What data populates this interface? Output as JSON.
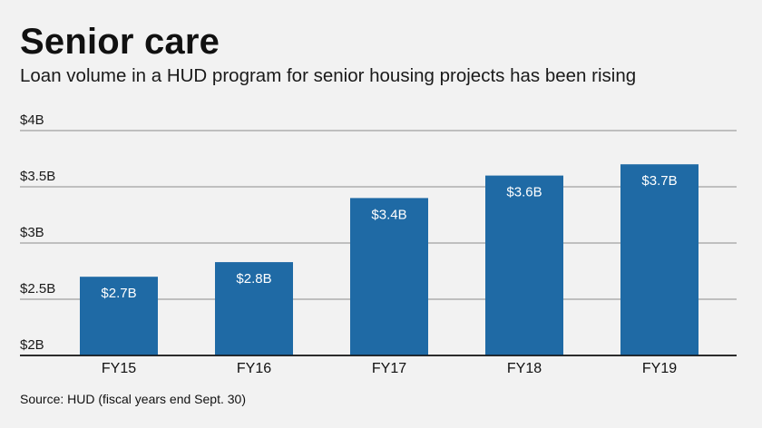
{
  "header": {
    "title": "Senior care",
    "subtitle": "Loan volume in a HUD program for senior housing projects has been rising"
  },
  "footer": {
    "source": "Source: HUD (fiscal years end Sept. 30)"
  },
  "colors": {
    "bar": "#1f6aa5",
    "gridline": "#8c8c8c",
    "background": "#f2f2f2"
  },
  "chart_data": {
    "type": "bar",
    "title": "Senior care",
    "subtitle": "Loan volume in a HUD program for senior housing projects has been rising",
    "categories": [
      "FY15",
      "FY16",
      "FY17",
      "FY18",
      "FY19"
    ],
    "values": [
      2.7,
      2.83,
      3.4,
      3.6,
      3.7
    ],
    "data_labels": [
      "$2.7B",
      "$2.8B",
      "$3.4B",
      "$3.6B",
      "$3.7B"
    ],
    "ylim": [
      2,
      4
    ],
    "yticks": [
      2,
      2.5,
      3,
      3.5,
      4
    ],
    "ytick_labels": [
      "$2B",
      "$2.5B",
      "$3B",
      "$3.5B",
      "$4B"
    ],
    "xlabel": "",
    "ylabel": "",
    "grid": true,
    "legend": "none"
  }
}
